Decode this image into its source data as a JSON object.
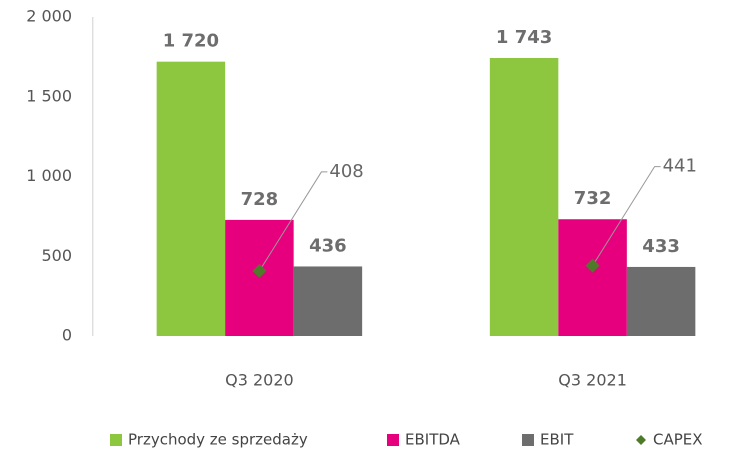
{
  "chart_data": {
    "type": "bar",
    "categories": [
      "Q3 2020",
      "Q3 2021"
    ],
    "series": [
      {
        "name": "Przychody ze sprzedaży",
        "color": "#8dc63f",
        "values": [
          1720,
          1743
        ],
        "value_labels": [
          "1 720",
          "1 743"
        ]
      },
      {
        "name": "EBITDA",
        "color": "#e6007e",
        "values": [
          728,
          732
        ]
      },
      {
        "name": "EBIT",
        "color": "#6d6d6d",
        "values": [
          436,
          433
        ]
      },
      {
        "name": "CAPEX",
        "color": "#4e7b2a",
        "type": "scatter",
        "values": [
          408,
          441
        ]
      }
    ],
    "ylim": [
      0,
      2000
    ],
    "yticks": [
      0,
      500,
      {
        "value": 1000,
        "label": "1 000"
      },
      {
        "value": 1500,
        "label": "1 500"
      },
      {
        "value": 2000,
        "label": "2 000"
      }
    ],
    "grid": false,
    "legend": "bottom"
  }
}
